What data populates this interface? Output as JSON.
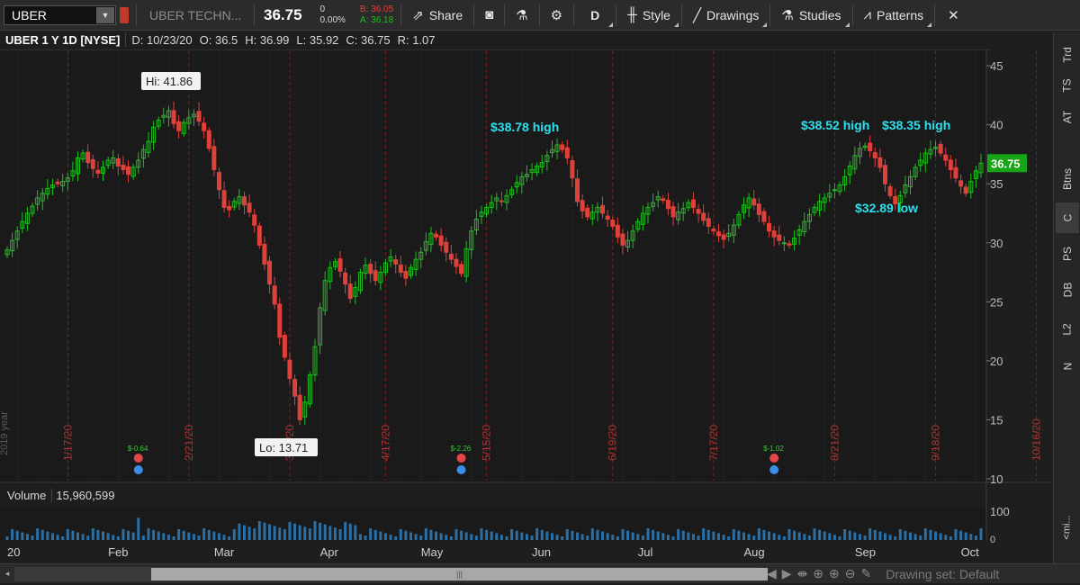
{
  "toolbar": {
    "symbol": "UBER",
    "company": "UBER TECHN...",
    "last": "36.75",
    "change": "0",
    "change_pct": "0.00%",
    "bid": "B: 36.05",
    "ask": "A: 36.18",
    "share_label": "Share",
    "period_label": "D",
    "style_label": "Style",
    "drawings_label": "Drawings",
    "studies_label": "Studies",
    "patterns_label": "Patterns"
  },
  "header": {
    "title": "UBER 1 Y 1D [NYSE]",
    "date": "D: 10/23/20",
    "open": "O: 36.5",
    "high": "H: 36.99",
    "low": "L: 35.92",
    "close": "C: 36.75",
    "range": "R: 1.07"
  },
  "volume": {
    "label": "Volume",
    "value": "15,960,599",
    "scale_label": "100"
  },
  "right_strip": [
    "Trd",
    "TS",
    "AT",
    "Btns",
    "C",
    "PS",
    "DB",
    "L2",
    "N"
  ],
  "active_tab": "C",
  "bottom": {
    "drawing_set": "Drawing set: Default",
    "collapse_label": "<mi..."
  },
  "colors": {
    "up": "#1fbf1f",
    "down": "#e0403a",
    "accent": "#2ce0f0",
    "event_red": "#e04848",
    "event_blue": "#3a8ee6"
  },
  "chart_data": {
    "type": "candlestick",
    "y_ticks": [
      "45",
      "40",
      "35",
      "30",
      "25",
      "20",
      "15",
      "10"
    ],
    "ylim": [
      10,
      46
    ],
    "x_month_labels": [
      "20",
      "Feb",
      "Mar",
      "Apr",
      "May",
      "Jun",
      "Jul",
      "Aug",
      "Sep",
      "Oct"
    ],
    "x_date_labels": [
      "1/17/20",
      "2/21/20",
      "3/20/20",
      "4/17/20",
      "5/15/20",
      "6/19/20",
      "7/17/20",
      "8/21/20",
      "9/18/20",
      "10/16/20"
    ],
    "side_label": "2019 year",
    "price_tag": "36.75",
    "annotations": [
      {
        "text": "Hi: 41.86",
        "style": "box"
      },
      {
        "text": "Lo: 13.71",
        "style": "box"
      },
      {
        "text": "$38.78 high",
        "style": "cyan"
      },
      {
        "text": "$38.52 high",
        "style": "cyan"
      },
      {
        "text": "$38.35 high",
        "style": "cyan"
      },
      {
        "text": "$32.89 low",
        "style": "cyan"
      }
    ],
    "earnings": [
      {
        "text": "$-0.64"
      },
      {
        "text": "$-2.26"
      },
      {
        "text": "$-1.02"
      }
    ],
    "closes": [
      29.4,
      30.2,
      31.0,
      31.8,
      32.5,
      33.1,
      33.8,
      34.2,
      34.6,
      34.9,
      35.0,
      35.2,
      35.5,
      36.1,
      37.2,
      37.6,
      36.8,
      36.3,
      35.9,
      36.4,
      37.0,
      37.2,
      36.5,
      36.2,
      35.8,
      36.4,
      37.0,
      37.9,
      38.6,
      39.8,
      40.4,
      40.8,
      41.2,
      40.1,
      39.5,
      40.2,
      40.6,
      40.9,
      40.3,
      39.5,
      38.0,
      36.2,
      34.5,
      33.0,
      32.8,
      33.5,
      33.9,
      33.2,
      32.6,
      31.5,
      29.8,
      28.2,
      26.5,
      24.8,
      22.0,
      20.3,
      18.5,
      17.0,
      15.0,
      16.5,
      18.8,
      21.2,
      24.5,
      26.8,
      27.9,
      28.4,
      27.6,
      26.5,
      25.3,
      26.2,
      27.5,
      28.1,
      27.4,
      26.8,
      27.5,
      28.3,
      28.8,
      28.2,
      27.5,
      27.0,
      27.9,
      28.6,
      29.2,
      30.1,
      30.8,
      30.5,
      29.8,
      29.2,
      28.6,
      28.0,
      27.4,
      29.5,
      31.0,
      32.0,
      32.6,
      33.0,
      33.4,
      33.8,
      33.5,
      34.0,
      34.5,
      35.1,
      35.6,
      35.8,
      36.2,
      36.5,
      36.8,
      37.4,
      37.9,
      38.3,
      37.9,
      37.2,
      35.5,
      33.5,
      32.7,
      32.2,
      32.6,
      33.0,
      32.5,
      32.0,
      31.4,
      30.5,
      29.8,
      30.2,
      31.0,
      31.8,
      32.5,
      33.0,
      33.4,
      33.9,
      33.6,
      32.9,
      32.2,
      32.6,
      32.9,
      33.4,
      33.0,
      32.5,
      31.9,
      31.4,
      31.0,
      30.6,
      30.3,
      30.8,
      31.5,
      32.4,
      33.2,
      33.8,
      33.2,
      32.4,
      31.8,
      31.0,
      30.5,
      30.2,
      30.0,
      29.8,
      30.4,
      31.1,
      31.8,
      32.4,
      33.0,
      33.5,
      33.8,
      34.2,
      34.5,
      34.9,
      35.6,
      36.5,
      37.4,
      38.0,
      38.2,
      37.8,
      37.2,
      36.4,
      35.0,
      34.0,
      33.3,
      34.0,
      34.9,
      35.6,
      36.4,
      37.0,
      37.6,
      37.9,
      38.1,
      37.6,
      37.0,
      36.2,
      35.5,
      34.8,
      34.2,
      35.2,
      36.1,
      36.75
    ]
  }
}
